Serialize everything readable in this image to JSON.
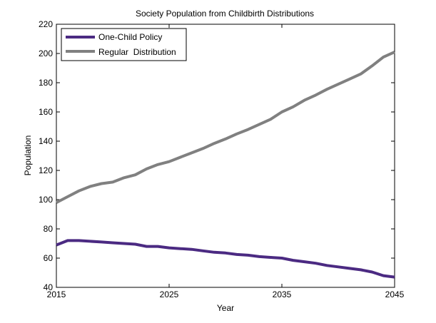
{
  "chart_data": {
    "type": "line",
    "title": "Society Population from Childbirth Distributions",
    "xlabel": "Year",
    "ylabel": "Population",
    "xlim": [
      2015,
      2045
    ],
    "ylim": [
      40,
      220
    ],
    "xticks": [
      2015,
      2025,
      2035,
      2045
    ],
    "yticks": [
      40,
      60,
      80,
      100,
      120,
      140,
      160,
      180,
      200,
      220
    ],
    "grid": false,
    "legend_position": "top-left",
    "x": [
      2015,
      2016,
      2017,
      2018,
      2019,
      2020,
      2021,
      2022,
      2023,
      2024,
      2025,
      2026,
      2027,
      2028,
      2029,
      2030,
      2031,
      2032,
      2033,
      2034,
      2035,
      2036,
      2037,
      2038,
      2039,
      2040,
      2041,
      2042,
      2043,
      2044,
      2045
    ],
    "series": [
      {
        "name": "One-Child Policy",
        "color": "#4b2a82",
        "values": [
          69,
          72,
          72,
          71.5,
          71,
          70.5,
          70,
          69.5,
          68,
          68,
          67,
          66.5,
          66,
          65,
          64,
          63.5,
          62.5,
          62,
          61,
          60.5,
          60,
          58.5,
          57.5,
          56.5,
          55,
          54,
          53,
          52,
          50.5,
          48,
          47
        ]
      },
      {
        "name": "Regular  Distribution",
        "color": "#808080",
        "values": [
          98,
          102,
          106,
          109,
          111,
          112,
          115,
          117,
          121,
          124,
          126,
          129,
          132,
          135,
          138.5,
          141.5,
          145,
          148,
          151.5,
          155,
          160,
          163.5,
          168,
          171.5,
          175.5,
          179,
          182.5,
          186,
          191.5,
          197.5,
          201
        ]
      }
    ]
  }
}
